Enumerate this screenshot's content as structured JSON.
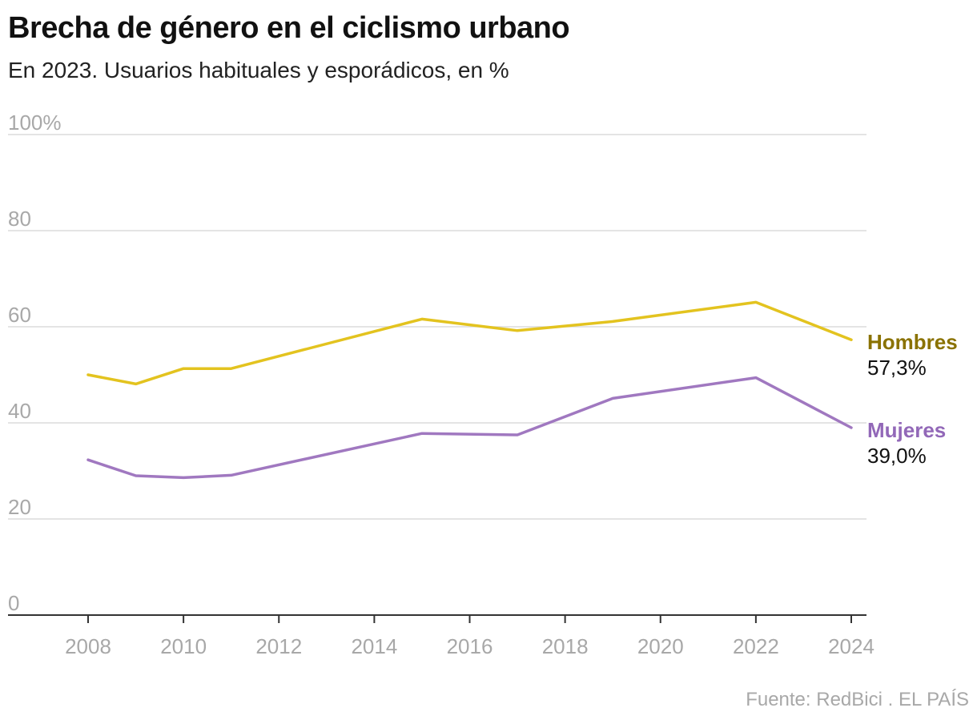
{
  "header": {
    "title": "Brecha de género en el ciclismo urbano",
    "subtitle": "En 2023. Usuarios habituales y esporádicos, en %"
  },
  "footer": {
    "source": "Fuente: RedBici . EL PAÍS"
  },
  "chart_data": {
    "type": "line",
    "title": "Brecha de género en el ciclismo urbano",
    "subtitle": "En 2023. Usuarios habituales y esporádicos, en %",
    "xlabel": "",
    "ylabel": "",
    "xlim": [
      2008,
      2024
    ],
    "ylim": [
      0,
      100
    ],
    "grid": true,
    "yticks": [
      0,
      20,
      40,
      60,
      80,
      100
    ],
    "ytick_labels": [
      "0",
      "20",
      "40",
      "60",
      "80",
      "100%"
    ],
    "xticks": [
      2008,
      2010,
      2012,
      2014,
      2016,
      2018,
      2020,
      2022,
      2024
    ],
    "xtick_labels": [
      "2008",
      "2010",
      "2012",
      "2014",
      "2016",
      "2018",
      "2020",
      "2022",
      "2024"
    ],
    "series": [
      {
        "name": "Hombres",
        "color": "#e3c31f",
        "label_color": "#8a7200",
        "end_label": "57,3%",
        "x": [
          2008,
          2009,
          2010,
          2011,
          2015,
          2017,
          2019,
          2022,
          2024
        ],
        "y": [
          50.0,
          48.1,
          51.3,
          51.3,
          61.6,
          59.2,
          61.1,
          65.1,
          57.3
        ]
      },
      {
        "name": "Mujeres",
        "color": "#a078c0",
        "label_color": "#9268b8",
        "end_label": "39,0%",
        "x": [
          2008,
          2009,
          2010,
          2011,
          2015,
          2017,
          2019,
          2022,
          2024
        ],
        "y": [
          32.3,
          29.0,
          28.6,
          29.1,
          37.8,
          37.5,
          45.1,
          49.4,
          39.0
        ]
      }
    ]
  }
}
